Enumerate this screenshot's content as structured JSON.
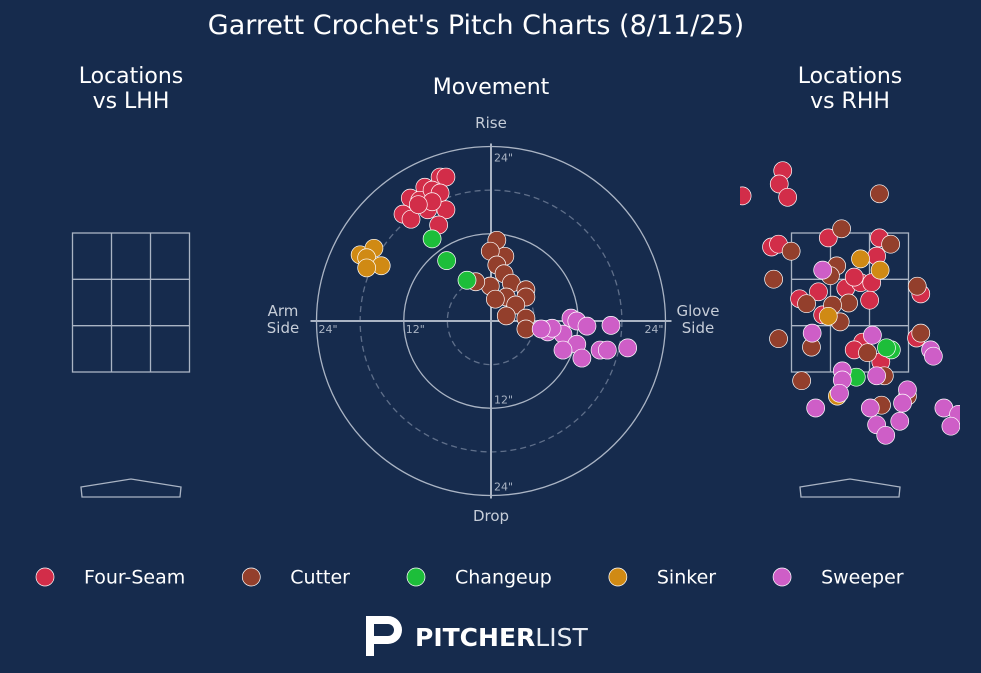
{
  "title": "Garrett Crochet's Pitch Charts (8/11/25)",
  "chart_data": [
    {
      "type": "location",
      "title": "Locations\nvs LHH",
      "xlim": [
        -1.57,
        1.57
      ],
      "ylim": [
        0,
        4.6
      ],
      "series": []
    },
    {
      "type": "movement",
      "title": "Movement",
      "axis_labels": {
        "top": "Rise",
        "bottom": "Drop",
        "left": "Arm\nSide",
        "right": "Glove\nSide"
      },
      "xlim": [
        -24,
        24
      ],
      "ylim": [
        -24,
        24
      ],
      "rticks": [
        {
          "value": 12,
          "label": "12\""
        },
        {
          "value": 24,
          "label": "24\""
        }
      ],
      "minor_rticks": [
        6,
        18
      ],
      "series": [
        {
          "name": "Four-Seam",
          "color": "#d22d49",
          "x": [
            -7.0,
            -6.2,
            -9.1,
            -11.1,
            -9.8,
            -8.1,
            -7.0,
            -12.1,
            -11.0,
            -8.7,
            -6.2,
            -7.2,
            -8.1,
            -10.0
          ],
          "values": [
            19.8,
            19.8,
            18.4,
            16.9,
            16.6,
            18.0,
            17.6,
            14.7,
            14.0,
            15.3,
            15.3,
            13.2,
            16.4,
            16.0
          ]
        },
        {
          "name": "Cutter",
          "color": "#933f2c",
          "x": [
            0.8,
            1.9,
            -0.1,
            0.8,
            1.8,
            2.8,
            -0.1,
            -2.1,
            4.8,
            4.8,
            2.1,
            3.4,
            2.1,
            4.8,
            4.8,
            0.6
          ],
          "values": [
            11.1,
            8.9,
            9.6,
            7.7,
            6.5,
            5.2,
            4.8,
            5.4,
            4.3,
            3.3,
            3.3,
            2.2,
            0.7,
            0.4,
            -1.1,
            3.0
          ]
        },
        {
          "name": "Changeup",
          "color": "#1dbe3a",
          "x": [
            -8.1,
            -6.1,
            -3.3
          ],
          "values": [
            11.3,
            8.3,
            5.6
          ]
        },
        {
          "name": "Sinker",
          "color": "#d08a14",
          "x": [
            -18.0,
            -16.1,
            -17.1,
            -15.1,
            -17.1
          ],
          "values": [
            9.1,
            10.0,
            8.7,
            7.6,
            7.3
          ]
        },
        {
          "name": "Sweeper",
          "color": "#ce5ec7",
          "x": [
            7.8,
            11.0,
            11.8,
            13.2,
            16.5,
            9.9,
            11.8,
            9.9,
            12.5,
            15.0,
            16.0,
            18.8,
            8.4,
            6.9
          ],
          "values": [
            -1.5,
            0.4,
            0.0,
            -0.7,
            -0.6,
            -1.8,
            -3.2,
            -4.0,
            -5.1,
            -4.0,
            -4.0,
            -3.7,
            -1.0,
            -1.1
          ]
        }
      ]
    },
    {
      "type": "location",
      "title": "Locations\nvs RHH",
      "xlim": [
        -1.57,
        1.57
      ],
      "ylim": [
        0,
        4.6
      ],
      "series": [
        {
          "name": "Four-Seam",
          "color": "#d22d49",
          "x": [
            -1.54,
            -0.96,
            -1.01,
            -0.89,
            -1.12,
            -1.02,
            -0.31,
            0.42,
            0.38,
            -0.72,
            -0.45,
            -0.06,
            0.15,
            0.06,
            0.31,
            0.28,
            1.01,
            0.95,
            0.18,
            0.06,
            0.44,
            -0.39
          ],
          "values": [
            4.03,
            4.39,
            4.2,
            4.01,
            3.3,
            3.34,
            3.43,
            3.43,
            3.17,
            2.56,
            2.66,
            2.71,
            2.79,
            2.87,
            2.79,
            2.54,
            2.63,
            2.0,
            1.94,
            1.83,
            1.66,
            2.33
          ]
        },
        {
          "name": "Cutter",
          "color": "#933f2c",
          "x": [
            0.42,
            -0.12,
            -0.84,
            -1.09,
            -0.19,
            -0.28,
            0.58,
            0.96,
            -0.62,
            -0.02,
            -0.25,
            -0.14,
            1.01,
            -1.02,
            -0.55,
            0.25,
            0.49,
            -0.69,
            0.45,
            0.82
          ],
          "values": [
            4.06,
            3.56,
            3.24,
            2.84,
            3.03,
            2.89,
            3.34,
            2.74,
            2.49,
            2.5,
            2.47,
            2.23,
            2.07,
            1.99,
            1.87,
            1.79,
            1.46,
            1.39,
            1.04,
            1.17
          ]
        },
        {
          "name": "Changeup",
          "color": "#1dbe3a",
          "x": [
            0.09,
            0.59,
            0.52
          ],
          "values": [
            1.44,
            1.83,
            1.86
          ]
        },
        {
          "name": "Sinker",
          "color": "#d08a14",
          "x": [
            0.15,
            0.43,
            -0.31,
            -0.18
          ],
          "values": [
            3.13,
            2.97,
            2.31,
            1.17
          ]
        },
        {
          "name": "Sweeper",
          "color": "#ce5ec7",
          "x": [
            -0.39,
            -0.54,
            0.32,
            1.15,
            1.19,
            -0.11,
            -0.11,
            0.38,
            0.82,
            0.75,
            -0.49,
            -0.15,
            0.29,
            1.34,
            1.55,
            0.38,
            0.71,
            0.51,
            1.44
          ],
          "values": [
            2.97,
            2.07,
            2.04,
            1.83,
            1.74,
            1.53,
            1.4,
            1.46,
            1.26,
            1.07,
            1.0,
            1.21,
            1.0,
            1.0,
            0.91,
            0.76,
            0.81,
            0.61,
            0.74
          ]
        }
      ]
    }
  ],
  "footer": {
    "brand_bold": "PITCHER",
    "brand_light": "LIST"
  }
}
